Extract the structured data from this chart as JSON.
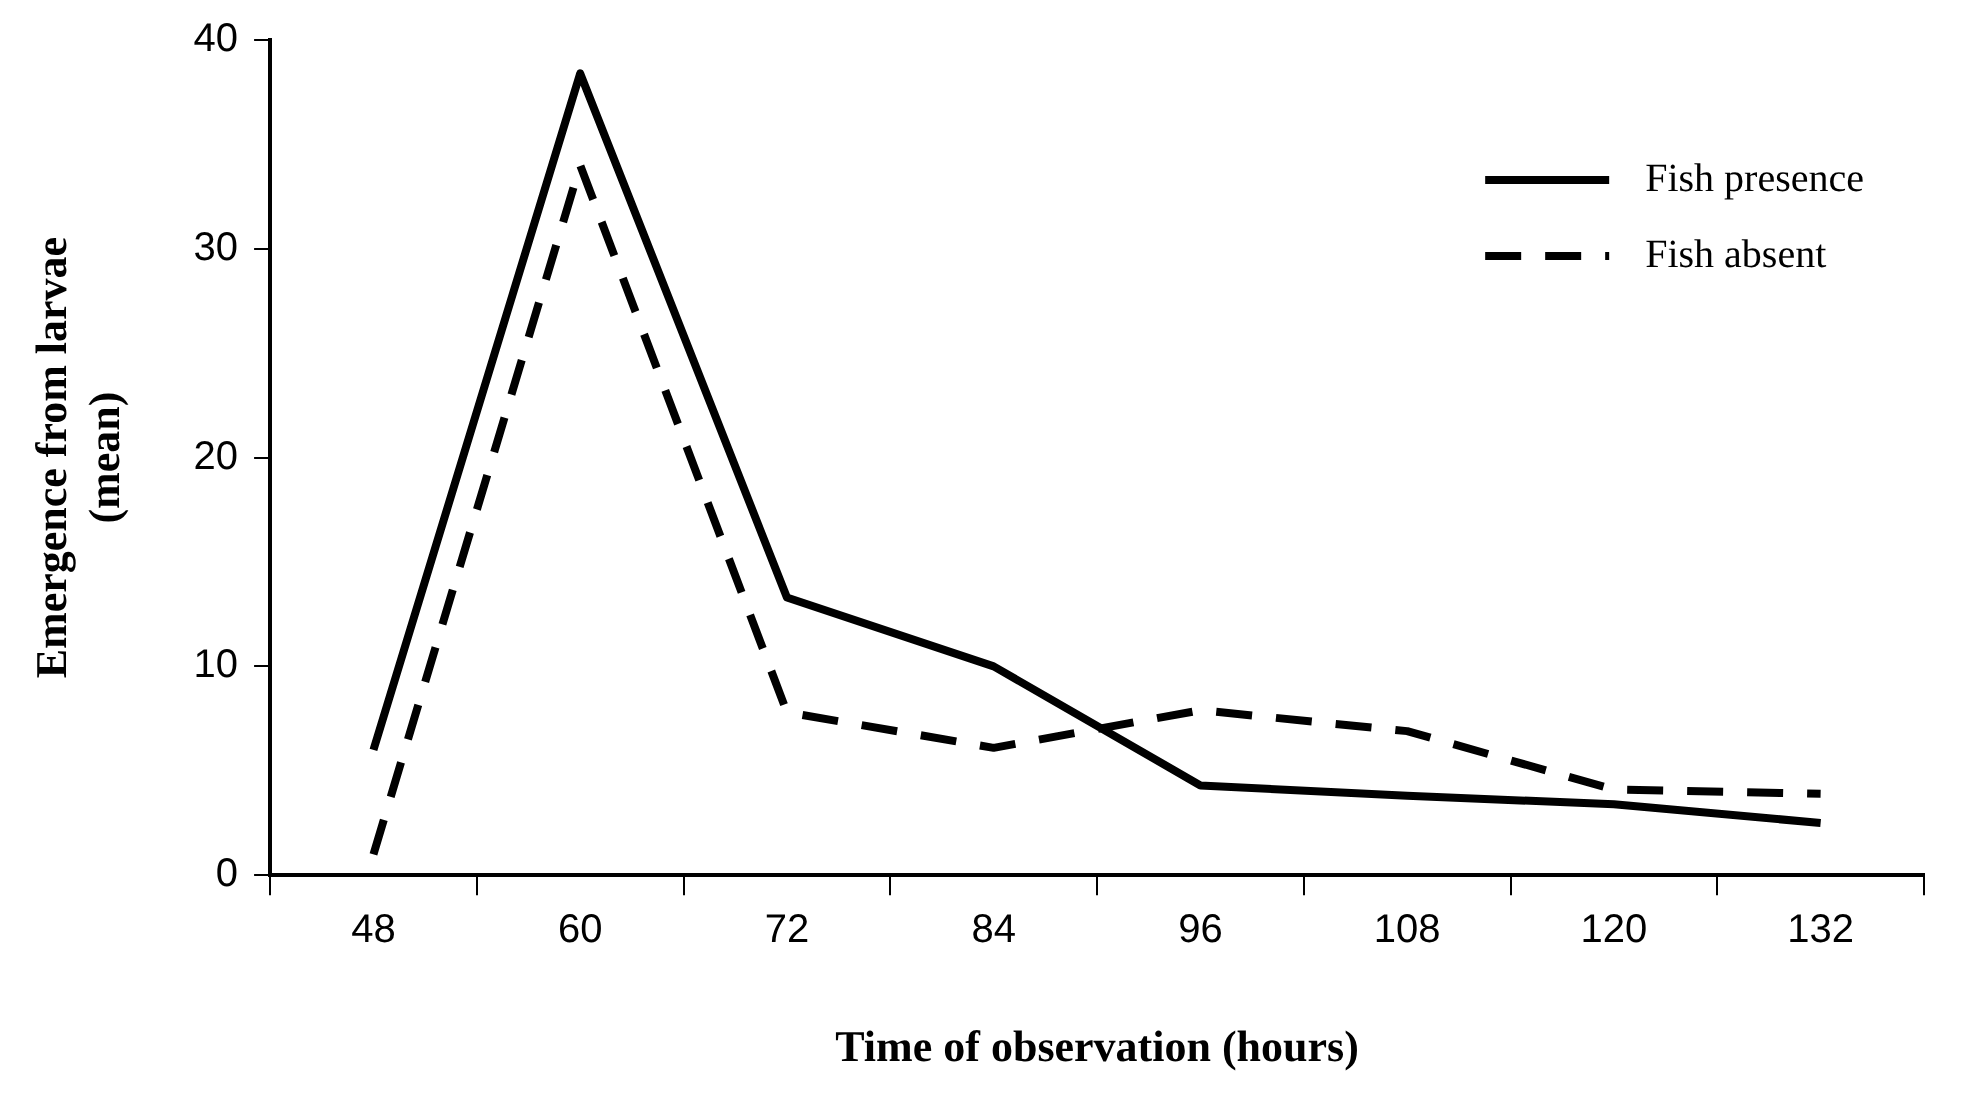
{
  "chart_data": {
    "type": "line",
    "xlabel": "Time of observation (hours)",
    "ylabel": "Emergence from larvae\n(mean)",
    "categories": [
      "48",
      "60",
      "72",
      "84",
      "96",
      "108",
      "120",
      "132"
    ],
    "series": [
      {
        "name": "Fish presence",
        "color": "#000000",
        "line_style": "solid",
        "values": [
          6,
          38.4,
          13.3,
          10,
          4.3,
          3.8,
          3.4,
          2.5
        ]
      },
      {
        "name": "Fish absent",
        "color": "#000000",
        "line_style": "dashed",
        "values": [
          1,
          34,
          7.8,
          6.1,
          7.9,
          6.9,
          4.1,
          3.9
        ]
      }
    ],
    "ylim": [
      0,
      40
    ],
    "yticks": [
      0,
      10,
      20,
      30,
      40
    ],
    "grid": false,
    "legend": "top right",
    "marker": "none"
  }
}
